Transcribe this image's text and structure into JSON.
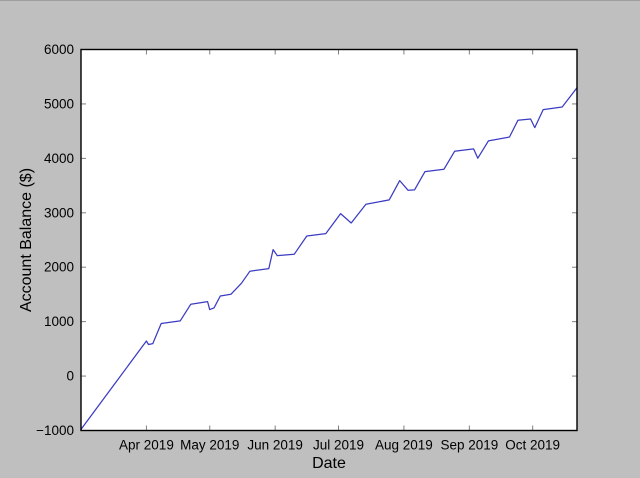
{
  "figure": {
    "background_color": "#bfbfbf",
    "plot_background_color": "#ffffff",
    "axis_box_color": "#000000",
    "tick_color": "#808080",
    "label_color": "#000000",
    "top_edge_color": "#9e9e9e"
  },
  "chart_data": {
    "type": "line",
    "title": "",
    "xlabel": "Date",
    "ylabel": "Account Balance ($)",
    "grid": false,
    "legend": null,
    "line_color": "#3b3bc4",
    "xlim": [
      "2019-03-01",
      "2019-10-22"
    ],
    "ylim": [
      -1000,
      6000
    ],
    "y_ticks": [
      -1000,
      0,
      1000,
      2000,
      3000,
      4000,
      5000,
      6000
    ],
    "x_ticks": [
      {
        "date": "2019-04-01",
        "label": "Apr 2019"
      },
      {
        "date": "2019-05-01",
        "label": "May 2019"
      },
      {
        "date": "2019-06-01",
        "label": "Jun 2019"
      },
      {
        "date": "2019-07-01",
        "label": "Jul 2019"
      },
      {
        "date": "2019-08-01",
        "label": "Aug 2019"
      },
      {
        "date": "2019-09-01",
        "label": "Sep 2019"
      },
      {
        "date": "2019-10-01",
        "label": "Oct 2019"
      }
    ],
    "points": [
      [
        "2019-03-01",
        -980
      ],
      [
        "2019-04-01",
        645
      ],
      [
        "2019-04-02",
        580
      ],
      [
        "2019-04-04",
        597
      ],
      [
        "2019-04-08",
        965
      ],
      [
        "2019-04-17",
        1013
      ],
      [
        "2019-04-22",
        1320
      ],
      [
        "2019-04-30",
        1369
      ],
      [
        "2019-05-01",
        1222
      ],
      [
        "2019-05-03",
        1252
      ],
      [
        "2019-05-06",
        1472
      ],
      [
        "2019-05-11",
        1503
      ],
      [
        "2019-05-16",
        1705
      ],
      [
        "2019-05-20",
        1926
      ],
      [
        "2019-05-29",
        1975
      ],
      [
        "2019-05-31",
        2324
      ],
      [
        "2019-06-02",
        2214
      ],
      [
        "2019-06-10",
        2238
      ],
      [
        "2019-06-16",
        2574
      ],
      [
        "2019-06-25",
        2617
      ],
      [
        "2019-07-02",
        2985
      ],
      [
        "2019-07-07",
        2813
      ],
      [
        "2019-07-14",
        3156
      ],
      [
        "2019-07-25",
        3236
      ],
      [
        "2019-07-30",
        3592
      ],
      [
        "2019-08-03",
        3414
      ],
      [
        "2019-08-06",
        3420
      ],
      [
        "2019-08-11",
        3757
      ],
      [
        "2019-08-20",
        3800
      ],
      [
        "2019-08-25",
        4130
      ],
      [
        "2019-09-03",
        4173
      ],
      [
        "2019-09-05",
        4002
      ],
      [
        "2019-09-10",
        4320
      ],
      [
        "2019-09-20",
        4393
      ],
      [
        "2019-09-24",
        4700
      ],
      [
        "2019-09-30",
        4724
      ],
      [
        "2019-10-02",
        4565
      ],
      [
        "2019-10-06",
        4896
      ],
      [
        "2019-10-15",
        4944
      ],
      [
        "2019-10-22",
        5299
      ]
    ]
  }
}
